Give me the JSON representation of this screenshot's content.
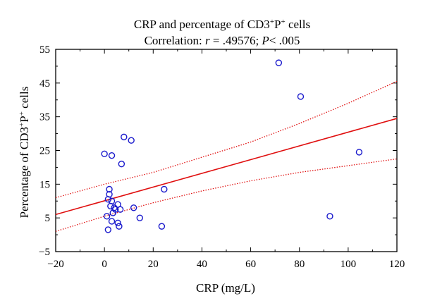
{
  "chart_data": {
    "type": "scatter",
    "title": "CRP and percentage of CD3",
    "title_sup1": "+",
    "title_mid": "P",
    "title_sup2": "+",
    "title_end": " cells",
    "subtitle_prefix": "Correlation: ",
    "subtitle_r": "r",
    "subtitle_r_value": " = .49576; ",
    "subtitle_p": "P",
    "subtitle_p_value": "< .005",
    "xlabel": "CRP (mg/L)",
    "ylabel": "Percentage of CD3",
    "ylabel_sup1": "+",
    "ylabel_mid": "P",
    "ylabel_sup2": "+",
    "ylabel_end": " cells",
    "xlim": [
      -20,
      120
    ],
    "ylim": [
      -5,
      55
    ],
    "xticks": [
      -20,
      0,
      20,
      40,
      60,
      80,
      100,
      120
    ],
    "xtick_labels": [
      "−20",
      "0",
      "20",
      "40",
      "60",
      "80",
      "100",
      "120"
    ],
    "yticks": [
      -5,
      5,
      15,
      25,
      35,
      45,
      55
    ],
    "ytick_labels": [
      "−5",
      "5",
      "15",
      "25",
      "35",
      "45",
      "55"
    ],
    "grid": false,
    "marker_color": "#1a1acc",
    "line_color": "#e01010",
    "points": [
      {
        "x": 0,
        "y": 24
      },
      {
        "x": 1,
        "y": 5.5
      },
      {
        "x": 1.5,
        "y": 10.5
      },
      {
        "x": 1.5,
        "y": 1.5
      },
      {
        "x": 2,
        "y": 12
      },
      {
        "x": 2,
        "y": 13.5
      },
      {
        "x": 2.5,
        "y": 8.5
      },
      {
        "x": 3,
        "y": 23.5
      },
      {
        "x": 3,
        "y": 10
      },
      {
        "x": 3,
        "y": 4
      },
      {
        "x": 3.5,
        "y": 6.5
      },
      {
        "x": 4,
        "y": 8
      },
      {
        "x": 4.5,
        "y": 7.5
      },
      {
        "x": 5.5,
        "y": 9
      },
      {
        "x": 5.5,
        "y": 3.5
      },
      {
        "x": 6,
        "y": 2.5
      },
      {
        "x": 6.5,
        "y": 7.5
      },
      {
        "x": 7,
        "y": 21
      },
      {
        "x": 8,
        "y": 29
      },
      {
        "x": 11,
        "y": 28
      },
      {
        "x": 12,
        "y": 8
      },
      {
        "x": 14.5,
        "y": 5
      },
      {
        "x": 23.5,
        "y": 2.5
      },
      {
        "x": 24.5,
        "y": 13.5
      },
      {
        "x": 71.5,
        "y": 51
      },
      {
        "x": 80.5,
        "y": 41
      },
      {
        "x": 92.5,
        "y": 5.5
      },
      {
        "x": 104.5,
        "y": 24.5
      }
    ],
    "regression": {
      "x": [
        -20,
        120
      ],
      "y": [
        6,
        34.5
      ]
    },
    "ci_upper": {
      "x": [
        -20,
        0,
        20,
        40,
        60,
        80,
        100,
        120
      ],
      "y": [
        11,
        15,
        18.5,
        23,
        27.5,
        33,
        39,
        45.5
      ]
    },
    "ci_lower": {
      "x": [
        -20,
        0,
        20,
        40,
        60,
        80,
        100,
        120
      ],
      "y": [
        1,
        5.5,
        9.5,
        13,
        16,
        18.5,
        20.5,
        22.5
      ]
    }
  }
}
